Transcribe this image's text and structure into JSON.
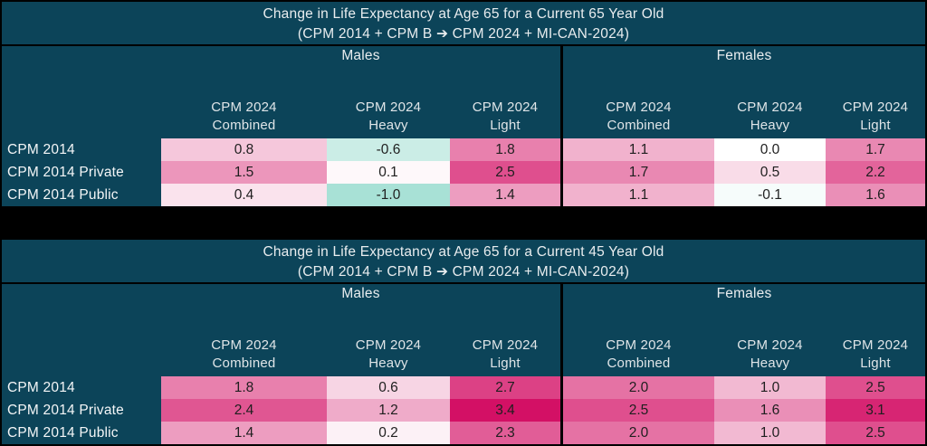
{
  "colors": {
    "page_background": "#000000",
    "panel_background": "#0c4459",
    "header_text": "#e9edef",
    "value_text": "#1f1f1f",
    "divider": "#000000",
    "scale": {
      "negative": "#a8e1d6",
      "zero": "#ffffff",
      "positive": "#d31065",
      "neg_limit": -1.0,
      "pos_limit": 3.4
    }
  },
  "chart_data": [
    {
      "type": "heatmap",
      "title": "Change in Life Expectancy at Age 65 for a Current 65 Year Old",
      "subtitle": "(CPM 2014 + CPM B ➔ CPM 2024 + MI-CAN-2024)",
      "column_groups": [
        {
          "label": "Males",
          "columns": [
            {
              "line1": "CPM 2024",
              "line2": "Combined"
            },
            {
              "line1": "CPM 2024",
              "line2": "Heavy"
            },
            {
              "line1": "CPM 2024",
              "line2": "Light"
            }
          ]
        },
        {
          "label": "Females",
          "columns": [
            {
              "line1": "CPM 2024",
              "line2": "Combined"
            },
            {
              "line1": "CPM 2024",
              "line2": "Heavy"
            },
            {
              "line1": "CPM 2024",
              "line2": "Light"
            }
          ]
        }
      ],
      "rows": [
        {
          "label": "CPM 2014",
          "values": [
            0.8,
            -0.6,
            1.8,
            1.1,
            0.0,
            1.7
          ]
        },
        {
          "label": "CPM 2014 Private",
          "values": [
            1.5,
            0.1,
            2.5,
            1.7,
            0.5,
            2.2
          ]
        },
        {
          "label": "CPM 2014 Public",
          "values": [
            0.4,
            -1.0,
            1.4,
            1.1,
            -0.1,
            1.6
          ]
        }
      ]
    },
    {
      "type": "heatmap",
      "title": "Change in Life Expectancy at Age 65 for a Current 45 Year Old",
      "subtitle": "(CPM 2014 + CPM B ➔ CPM 2024 + MI-CAN-2024)",
      "column_groups": [
        {
          "label": "Males",
          "columns": [
            {
              "line1": "CPM 2024",
              "line2": "Combined"
            },
            {
              "line1": "CPM 2024",
              "line2": "Heavy"
            },
            {
              "line1": "CPM 2024",
              "line2": "Light"
            }
          ]
        },
        {
          "label": "Females",
          "columns": [
            {
              "line1": "CPM 2024",
              "line2": "Combined"
            },
            {
              "line1": "CPM 2024",
              "line2": "Heavy"
            },
            {
              "line1": "CPM 2024",
              "line2": "Light"
            }
          ]
        }
      ],
      "rows": [
        {
          "label": "CPM 2014",
          "values": [
            1.8,
            0.6,
            2.7,
            2.0,
            1.0,
            2.5
          ]
        },
        {
          "label": "CPM 2014 Private",
          "values": [
            2.4,
            1.2,
            3.4,
            2.5,
            1.6,
            3.1
          ]
        },
        {
          "label": "CPM 2014 Public",
          "values": [
            1.4,
            0.2,
            2.3,
            2.0,
            1.0,
            2.5
          ]
        }
      ]
    }
  ]
}
